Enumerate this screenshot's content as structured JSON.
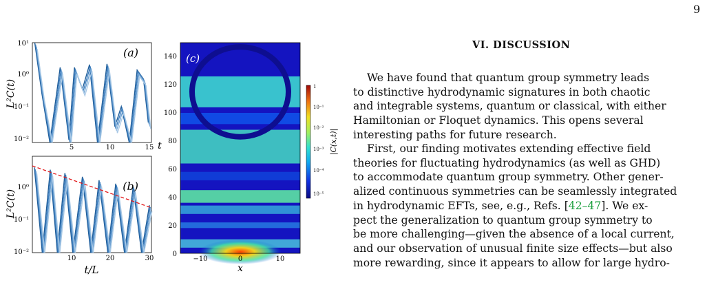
{
  "page_number": "9",
  "section_heading": "VI.    DISCUSSION",
  "paragraph1": [
    "We have found that quantum group symmetry leads",
    "to distinctive hydrodynamic signatures in both chaotic",
    "and integrable systems, quantum or classical, with either",
    "Hamiltonian or Floquet dynamics.  This opens several",
    "interesting paths for future research."
  ],
  "paragraph2": {
    "lines": [
      "First, our finding motivates extending effective field",
      "theories for fluctuating hydrodynamics (as well as GHD)",
      "to accommodate quantum group symmetry. Other gener-",
      "alized continuous symmetries can be seamlessly integrated"
    ],
    "line5_pre": "in hydrodynamic EFTs, see, e.g., Refs. [",
    "line5_cite": "42–47",
    "line5_post": "]. We ex-",
    "lines_after": [
      "pect the generalization to quantum group symmetry to",
      "be more challenging—given the absence of a local current,",
      "and our observation of unusual finite size effects—but also",
      "more rewarding, since it appears to allow for large hydro-"
    ]
  },
  "figure": {
    "panel_a": {
      "label": "(a)",
      "ylabel": "L²C(t)",
      "yticks": [
        "10¹",
        "10⁰",
        "10⁻¹",
        "10⁻²"
      ],
      "xticks": [
        "5",
        "10",
        "15"
      ]
    },
    "panel_b": {
      "label": "(b)",
      "ylabel": "L²C(t)",
      "yticks": [
        "10⁰",
        "10⁻¹",
        "10⁻²"
      ],
      "xticks": [
        "10",
        "20",
        "30"
      ],
      "xlabel": "t/L"
    },
    "panel_c": {
      "label": "(c)",
      "ylabel": "t",
      "xlabel": "x",
      "yticks": [
        "0",
        "20",
        "40",
        "60",
        "80",
        "100",
        "120",
        "140"
      ],
      "xticks": [
        "−10",
        "0",
        "10"
      ]
    },
    "colorbar": {
      "label": "|C(x,t)|",
      "ticks": [
        "1",
        "10⁻¹",
        "10⁻²",
        "10⁻³",
        "10⁻⁴",
        "10⁻⁵"
      ]
    },
    "colors": {
      "curve_dark": "#1f5d99",
      "curve_light": "#a9c9e6",
      "fit_line": "#e31a1c",
      "heat_bg": "#1010b0"
    }
  },
  "chart_data": [
    {
      "type": "line",
      "panel": "(a)",
      "ylabel": "L²C(t)",
      "yscale": "log",
      "ylim": [
        0.01,
        10
      ],
      "xlim": [
        0,
        15
      ],
      "series": [
        {
          "x": [
            0.3,
            1.2,
            2.2,
            3.5,
            4.6,
            5.3,
            6.3,
            7.2,
            8.2,
            9.4,
            10.4,
            11.2,
            12.2,
            13.2,
            14.0,
            14.6
          ],
          "y": [
            10,
            0.3,
            0.01,
            1.8,
            0.012,
            1.8,
            0.4,
            2.2,
            0.01,
            2.3,
            0.03,
            0.12,
            0.01,
            1.5,
            0.8,
            0.04
          ]
        }
      ]
    },
    {
      "type": "line",
      "panel": "(b)",
      "xlabel": "t/L",
      "ylabel": "L²C(t)",
      "yscale": "log",
      "ylim": [
        0.01,
        10
      ],
      "xlim": [
        0,
        30
      ],
      "series": [
        {
          "x": [
            0.5,
            2.5,
            4.5,
            6.3,
            8.2,
            10.2,
            12.6,
            14.7,
            16.8,
            19.0,
            21.0,
            23.2,
            25.4,
            27.5,
            29.5
          ],
          "y": [
            4.5,
            0.01,
            3.8,
            0.01,
            3.0,
            0.01,
            2.3,
            0.01,
            1.8,
            0.01,
            1.4,
            0.01,
            1.1,
            0.01,
            0.3
          ]
        },
        {
          "x": [
            0,
            30
          ],
          "y": [
            5.0,
            0.25
          ]
        }
      ]
    },
    {
      "type": "heatmap",
      "panel": "(c)",
      "xlabel": "x",
      "ylabel": "t",
      "xlim": [
        -15,
        15
      ],
      "ylim": [
        0,
        150
      ]
    }
  ]
}
